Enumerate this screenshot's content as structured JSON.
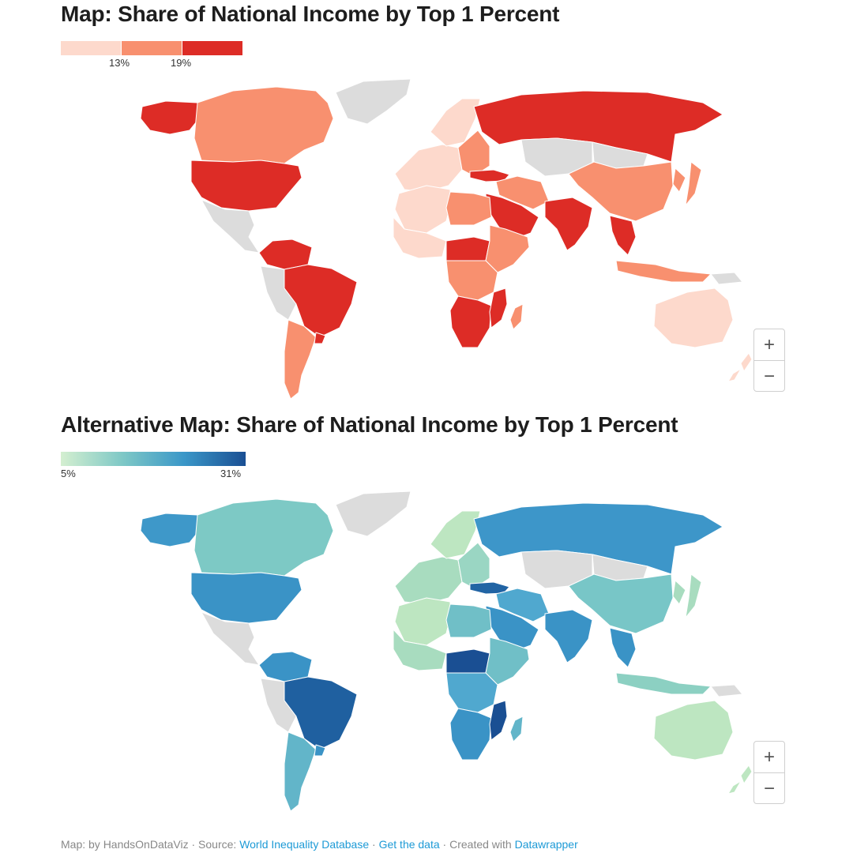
{
  "map1": {
    "title": "Map: Share of National Income by Top 1 Percent",
    "legend": {
      "type": "stepped",
      "colors": [
        "#fdd9cc",
        "#f8906f",
        "#dd2c26"
      ],
      "ticks": [
        "13%",
        "19%"
      ]
    }
  },
  "map2": {
    "title": "Alternative Map: Share of National Income by Top 1 Percent",
    "legend": {
      "type": "gradient",
      "gradient": [
        "#d4efd0",
        "#7ec8c6",
        "#3a97c8",
        "#1a4f93"
      ],
      "min_label": "5%",
      "max_label": "31%"
    }
  },
  "no_data_color": "#dcdcdc",
  "zoom": {
    "plus": "+",
    "minus": "−"
  },
  "footer": {
    "prefix": "Map: by HandsOnDataViz · Source: ",
    "source_link": "World Inequality Database",
    "sep1": " · ",
    "data_link": "Get the data",
    "sep2": " · Created with ",
    "tool_link": "Datawrapper"
  },
  "regions": [
    {
      "name": "Greenland",
      "c1": "nd",
      "c2": "nd"
    },
    {
      "name": "Alaska",
      "c1": "high",
      "c2": "#3e98c9"
    },
    {
      "name": "Canada",
      "c1": "mid",
      "c2": "#7dc9c5"
    },
    {
      "name": "United States",
      "c1": "high",
      "c2": "#3a93c6"
    },
    {
      "name": "Mexico & Central America",
      "c1": "nd",
      "c2": "nd"
    },
    {
      "name": "Colombia & Venezuela",
      "c1": "high",
      "c2": "#3a93c6"
    },
    {
      "name": "Brazil",
      "c1": "high",
      "c2": "#1f60a0"
    },
    {
      "name": "Peru & Bolivia",
      "c1": "nd",
      "c2": "nd"
    },
    {
      "name": "Chile & Argentina",
      "c1": "mid",
      "c2": "#62b5c9"
    },
    {
      "name": "Uruguay",
      "c1": "high",
      "c2": "#3a93c6"
    },
    {
      "name": "Western Europe",
      "c1": "low",
      "c2": "#a8dcbf"
    },
    {
      "name": "Scandinavia",
      "c1": "low",
      "c2": "#bde6c1"
    },
    {
      "name": "Eastern Europe",
      "c1": "mid",
      "c2": "#9ad6c3"
    },
    {
      "name": "Russia",
      "c1": "high",
      "c2": "#3d96c9"
    },
    {
      "name": "Turkey",
      "c1": "high",
      "c2": "#2164a4"
    },
    {
      "name": "Iran & Iraq",
      "c1": "mid",
      "c2": "#50a8cf"
    },
    {
      "name": "Arabian Peninsula",
      "c1": "high",
      "c2": "#3a93c6"
    },
    {
      "name": "Central Asia",
      "c1": "nd",
      "c2": "nd"
    },
    {
      "name": "Mongolia",
      "c1": "nd",
      "c2": "nd"
    },
    {
      "name": "China",
      "c1": "mid",
      "c2": "#78c6c7"
    },
    {
      "name": "Korea & Japan",
      "c1": "mid",
      "c2": "#a8dcbf"
    },
    {
      "name": "India",
      "c1": "high",
      "c2": "#3a93c6"
    },
    {
      "name": "Southeast Asia",
      "c1": "high",
      "c2": "#3a93c6"
    },
    {
      "name": "Indonesia",
      "c1": "mid",
      "c2": "#8cd0c2"
    },
    {
      "name": "Papua New Guinea",
      "c1": "nd",
      "c2": "nd"
    },
    {
      "name": "Australia",
      "c1": "low",
      "c2": "#bde6c1"
    },
    {
      "name": "New Zealand",
      "c1": "low",
      "c2": "#bde6c1"
    },
    {
      "name": "North Africa",
      "c1": "low",
      "c2": "#bde6c1"
    },
    {
      "name": "Libya & Egypt",
      "c1": "mid",
      "c2": "#70bfc7"
    },
    {
      "name": "West Africa",
      "c1": "low",
      "c2": "#a8dcbf"
    },
    {
      "name": "Central Africa",
      "c1": "high",
      "c2": "#1a4f93"
    },
    {
      "name": "East Africa",
      "c1": "mid",
      "c2": "#70bfc7"
    },
    {
      "name": "Congo Basin",
      "c1": "mid",
      "c2": "#50a8cf"
    },
    {
      "name": "Southern Africa",
      "c1": "high",
      "c2": "#3a93c6"
    },
    {
      "name": "Mozambique",
      "c1": "high",
      "c2": "#1a4f93"
    },
    {
      "name": "Madagascar",
      "c1": "mid",
      "c2": "#62b5c9"
    }
  ]
}
